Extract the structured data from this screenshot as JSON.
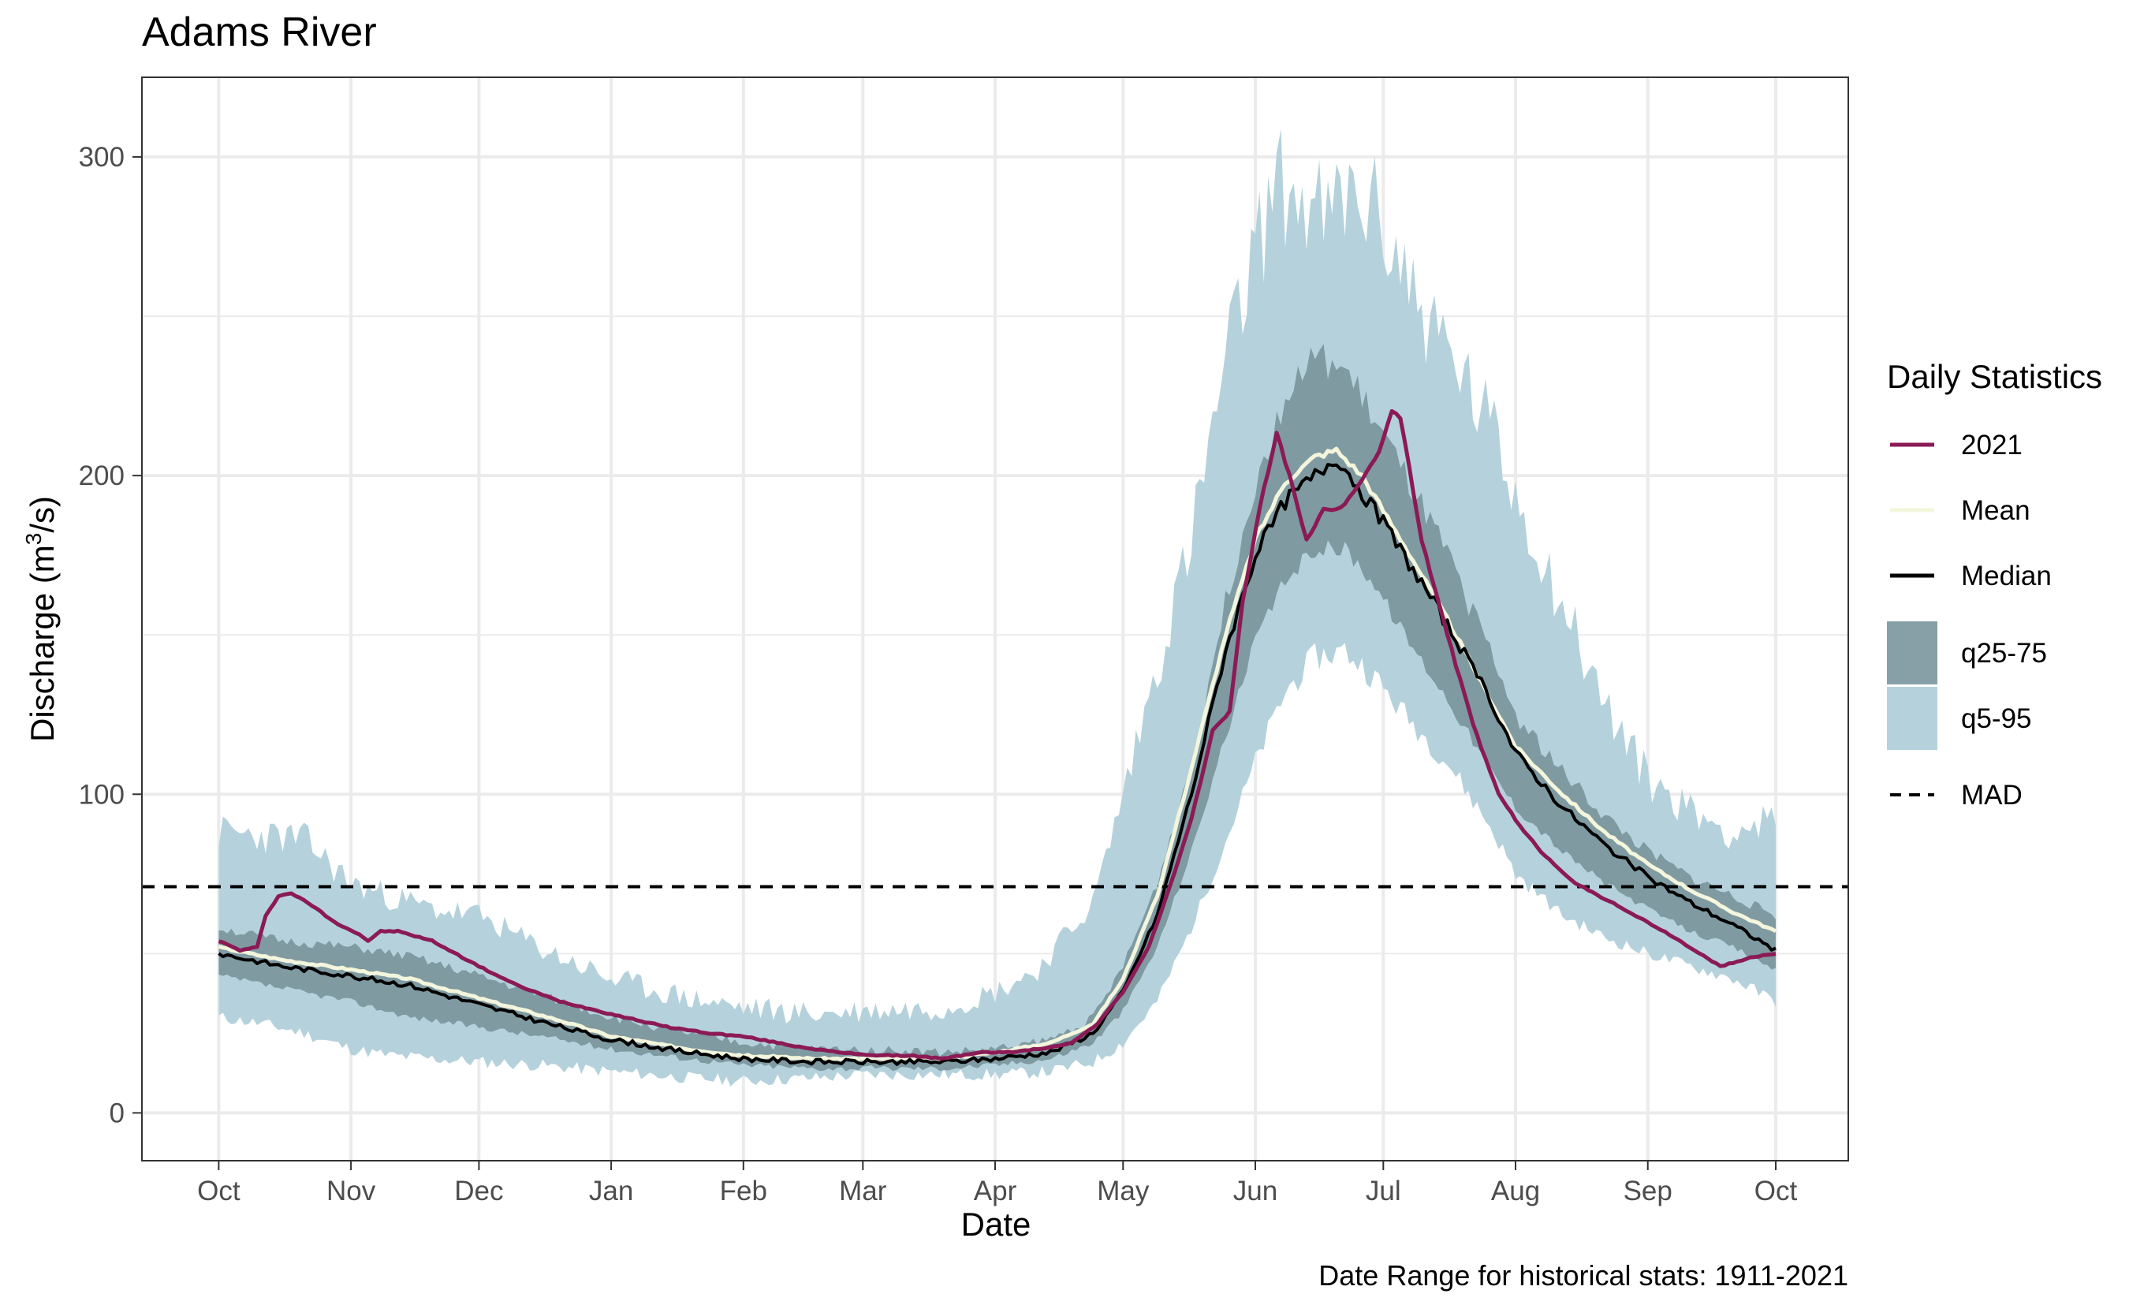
{
  "chart_data": {
    "type": "area",
    "title": "Adams River",
    "xlabel": "Date",
    "ylabel_main": "Discharge (m",
    "ylabel_sup": "3",
    "ylabel_end": "/s)",
    "caption": "Date Range for historical stats: 1911-2021",
    "legend_title": "Daily Statistics",
    "legend_position": "right",
    "grid": true,
    "x_ticks": [
      "Oct",
      "Nov",
      "Dec",
      "Jan",
      "Feb",
      "Mar",
      "Apr",
      "May",
      "Jun",
      "Jul",
      "Aug",
      "Sep",
      "Oct"
    ],
    "x_tick_days": [
      0,
      31,
      61,
      92,
      123,
      151,
      182,
      212,
      243,
      273,
      304,
      335,
      365
    ],
    "y_ticks": [
      0,
      100,
      200,
      300
    ],
    "ylim": [
      -15,
      325
    ],
    "xlim": [
      -18,
      382
    ],
    "mad": 71,
    "colors": {
      "series_2021": "#8b1a55",
      "mean": "#f3f5dc",
      "median": "#000000",
      "q25_75": "#7f9aa1",
      "q5_95": "#b5d2dc",
      "grid": "#ebebeb"
    },
    "legend": [
      {
        "label": "2021",
        "kind": "line",
        "color": "#8b1a55"
      },
      {
        "label": "Mean",
        "kind": "line",
        "color": "#f3f5dc"
      },
      {
        "label": "Median",
        "kind": "line",
        "color": "#000000"
      },
      {
        "label": "q25-75",
        "kind": "box",
        "color": "#87a0a7"
      },
      {
        "label": "q5-95",
        "kind": "box",
        "color": "#b5d2dc"
      },
      {
        "label": "MAD",
        "kind": "dash",
        "color": "#000000"
      }
    ],
    "q5": [
      [
        0,
        30
      ],
      [
        10,
        28
      ],
      [
        20,
        25
      ],
      [
        31,
        20
      ],
      [
        40,
        18
      ],
      [
        50,
        17
      ],
      [
        61,
        16
      ],
      [
        75,
        15
      ],
      [
        92,
        13
      ],
      [
        110,
        11
      ],
      [
        123,
        10
      ],
      [
        140,
        11
      ],
      [
        151,
        12
      ],
      [
        170,
        12
      ],
      [
        182,
        12
      ],
      [
        195,
        13
      ],
      [
        205,
        16
      ],
      [
        212,
        22
      ],
      [
        220,
        35
      ],
      [
        228,
        58
      ],
      [
        236,
        85
      ],
      [
        243,
        110
      ],
      [
        250,
        132
      ],
      [
        257,
        143
      ],
      [
        264,
        145
      ],
      [
        270,
        138
      ],
      [
        278,
        125
      ],
      [
        288,
        110
      ],
      [
        298,
        90
      ],
      [
        304,
        75
      ],
      [
        315,
        62
      ],
      [
        325,
        55
      ],
      [
        335,
        50
      ],
      [
        345,
        46
      ],
      [
        355,
        42
      ],
      [
        365,
        35
      ]
    ],
    "q25": [
      [
        0,
        43
      ],
      [
        15,
        39
      ],
      [
        31,
        35
      ],
      [
        45,
        30
      ],
      [
        61,
        27
      ],
      [
        80,
        23
      ],
      [
        92,
        20
      ],
      [
        110,
        17
      ],
      [
        123,
        15
      ],
      [
        140,
        14
      ],
      [
        151,
        14
      ],
      [
        170,
        14
      ],
      [
        182,
        15
      ],
      [
        195,
        17
      ],
      [
        205,
        22
      ],
      [
        212,
        32
      ],
      [
        220,
        52
      ],
      [
        228,
        82
      ],
      [
        236,
        118
      ],
      [
        243,
        148
      ],
      [
        250,
        167
      ],
      [
        257,
        177
      ],
      [
        264,
        177
      ],
      [
        270,
        168
      ],
      [
        278,
        150
      ],
      [
        288,
        130
      ],
      [
        298,
        108
      ],
      [
        304,
        96
      ],
      [
        315,
        82
      ],
      [
        325,
        72
      ],
      [
        335,
        64
      ],
      [
        345,
        57
      ],
      [
        355,
        52
      ],
      [
        365,
        45
      ]
    ],
    "q75": [
      [
        0,
        58
      ],
      [
        15,
        54
      ],
      [
        31,
        52
      ],
      [
        45,
        49
      ],
      [
        61,
        43
      ],
      [
        80,
        35
      ],
      [
        92,
        30
      ],
      [
        110,
        25
      ],
      [
        123,
        22
      ],
      [
        140,
        20
      ],
      [
        151,
        20
      ],
      [
        170,
        19
      ],
      [
        182,
        20
      ],
      [
        195,
        23
      ],
      [
        205,
        30
      ],
      [
        212,
        46
      ],
      [
        220,
        72
      ],
      [
        228,
        110
      ],
      [
        236,
        160
      ],
      [
        243,
        198
      ],
      [
        250,
        225
      ],
      [
        257,
        237
      ],
      [
        264,
        233
      ],
      [
        270,
        220
      ],
      [
        278,
        200
      ],
      [
        288,
        175
      ],
      [
        298,
        145
      ],
      [
        304,
        125
      ],
      [
        315,
        107
      ],
      [
        325,
        93
      ],
      [
        335,
        82
      ],
      [
        345,
        74
      ],
      [
        355,
        68
      ],
      [
        365,
        62
      ]
    ],
    "q95": [
      [
        0,
        88
      ],
      [
        10,
        87
      ],
      [
        20,
        86
      ],
      [
        31,
        72
      ],
      [
        40,
        68
      ],
      [
        50,
        64
      ],
      [
        61,
        62
      ],
      [
        75,
        52
      ],
      [
        92,
        42
      ],
      [
        110,
        36
      ],
      [
        123,
        33
      ],
      [
        140,
        31
      ],
      [
        151,
        32
      ],
      [
        170,
        33
      ],
      [
        182,
        38
      ],
      [
        192,
        45
      ],
      [
        200,
        58
      ],
      [
        205,
        66
      ],
      [
        212,
        100
      ],
      [
        220,
        140
      ],
      [
        228,
        180
      ],
      [
        236,
        235
      ],
      [
        243,
        270
      ],
      [
        248,
        292
      ],
      [
        255,
        285
      ],
      [
        260,
        280
      ],
      [
        265,
        288
      ],
      [
        270,
        285
      ],
      [
        276,
        270
      ],
      [
        283,
        250
      ],
      [
        290,
        235
      ],
      [
        298,
        215
      ],
      [
        304,
        195
      ],
      [
        315,
        160
      ],
      [
        325,
        128
      ],
      [
        335,
        105
      ],
      [
        345,
        95
      ],
      [
        355,
        88
      ],
      [
        365,
        92
      ]
    ],
    "mean": [
      [
        0,
        52
      ],
      [
        15,
        48
      ],
      [
        31,
        45
      ],
      [
        45,
        42
      ],
      [
        61,
        36
      ],
      [
        80,
        29
      ],
      [
        92,
        24
      ],
      [
        110,
        20
      ],
      [
        123,
        18
      ],
      [
        140,
        17
      ],
      [
        151,
        17
      ],
      [
        170,
        17
      ],
      [
        182,
        19
      ],
      [
        195,
        22
      ],
      [
        205,
        28
      ],
      [
        212,
        42
      ],
      [
        220,
        68
      ],
      [
        228,
        108
      ],
      [
        236,
        150
      ],
      [
        243,
        180
      ],
      [
        250,
        198
      ],
      [
        257,
        206
      ],
      [
        262,
        208
      ],
      [
        268,
        200
      ],
      [
        278,
        178
      ],
      [
        288,
        155
      ],
      [
        298,
        130
      ],
      [
        304,
        115
      ],
      [
        315,
        100
      ],
      [
        325,
        88
      ],
      [
        335,
        78
      ],
      [
        345,
        70
      ],
      [
        355,
        63
      ],
      [
        365,
        57
      ]
    ],
    "median": [
      [
        0,
        50
      ],
      [
        15,
        46
      ],
      [
        31,
        43
      ],
      [
        45,
        40
      ],
      [
        61,
        34
      ],
      [
        80,
        27
      ],
      [
        92,
        23
      ],
      [
        110,
        19
      ],
      [
        123,
        17
      ],
      [
        140,
        16
      ],
      [
        151,
        16
      ],
      [
        170,
        16
      ],
      [
        182,
        17
      ],
      [
        195,
        19
      ],
      [
        205,
        25
      ],
      [
        212,
        38
      ],
      [
        220,
        62
      ],
      [
        228,
        100
      ],
      [
        236,
        145
      ],
      [
        243,
        175
      ],
      [
        250,
        192
      ],
      [
        257,
        200
      ],
      [
        262,
        206
      ],
      [
        268,
        195
      ],
      [
        275,
        181
      ],
      [
        285,
        160
      ],
      [
        298,
        130
      ],
      [
        304,
        113
      ],
      [
        315,
        96
      ],
      [
        325,
        84
      ],
      [
        335,
        74
      ],
      [
        345,
        66
      ],
      [
        355,
        59
      ],
      [
        365,
        51
      ]
    ],
    "series_2021": [
      [
        0,
        54
      ],
      [
        5,
        51
      ],
      [
        9,
        52
      ],
      [
        11,
        62
      ],
      [
        14,
        68
      ],
      [
        17,
        69
      ],
      [
        22,
        65
      ],
      [
        27,
        60
      ],
      [
        33,
        56
      ],
      [
        35,
        54
      ],
      [
        38,
        57
      ],
      [
        42,
        57
      ],
      [
        50,
        54
      ],
      [
        61,
        46
      ],
      [
        70,
        40
      ],
      [
        80,
        35
      ],
      [
        92,
        31
      ],
      [
        105,
        27
      ],
      [
        115,
        25
      ],
      [
        123,
        24
      ],
      [
        135,
        21
      ],
      [
        145,
        19
      ],
      [
        155,
        18
      ],
      [
        162,
        18
      ],
      [
        170,
        17
      ],
      [
        178,
        19
      ],
      [
        185,
        19
      ],
      [
        192,
        20
      ],
      [
        200,
        22
      ],
      [
        206,
        28
      ],
      [
        212,
        38
      ],
      [
        218,
        52
      ],
      [
        224,
        75
      ],
      [
        228,
        92
      ],
      [
        233,
        120
      ],
      [
        237,
        126
      ],
      [
        240,
        160
      ],
      [
        244,
        190
      ],
      [
        248,
        213
      ],
      [
        251,
        200
      ],
      [
        255,
        180
      ],
      [
        259,
        189
      ],
      [
        263,
        190
      ],
      [
        268,
        198
      ],
      [
        272,
        208
      ],
      [
        275,
        220
      ],
      [
        277,
        218
      ],
      [
        282,
        180
      ],
      [
        288,
        150
      ],
      [
        294,
        122
      ],
      [
        300,
        100
      ],
      [
        305,
        90
      ],
      [
        310,
        82
      ],
      [
        318,
        72
      ],
      [
        328,
        65
      ],
      [
        340,
        56
      ],
      [
        352,
        46
      ],
      [
        360,
        49
      ],
      [
        365,
        50
      ]
    ]
  }
}
